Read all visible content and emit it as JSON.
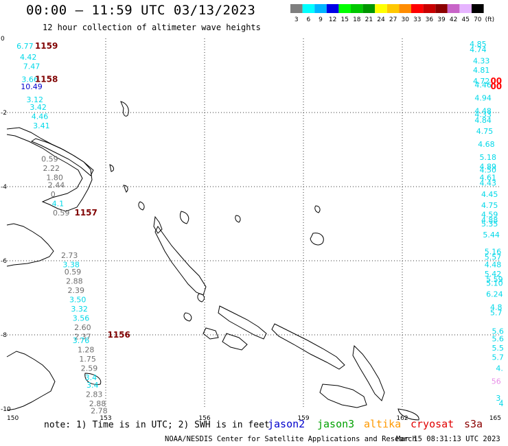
{
  "title": "00:00 – 11:59 UTC 03/13/2023",
  "subtitle": "12 hour collection of altimeter wave heights",
  "legend": {
    "unit": "(ft)",
    "bins": [
      {
        "label": "3",
        "color": "#7f7f7f"
      },
      {
        "label": "6",
        "color": "#00ffff"
      },
      {
        "label": "9",
        "color": "#00b4ff"
      },
      {
        "label": "12",
        "color": "#0000e6"
      },
      {
        "label": "15",
        "color": "#00ff00"
      },
      {
        "label": "18",
        "color": "#00c800"
      },
      {
        "label": "21",
        "color": "#009600"
      },
      {
        "label": "24",
        "color": "#ffff00"
      },
      {
        "label": "27",
        "color": "#ffc800"
      },
      {
        "label": "30",
        "color": "#ff8c00"
      },
      {
        "label": "33",
        "color": "#ff0000"
      },
      {
        "label": "36",
        "color": "#c80000"
      },
      {
        "label": "39",
        "color": "#8b0000"
      },
      {
        "label": "42",
        "color": "#c864c8"
      },
      {
        "label": "45",
        "color": "#e6b4ff"
      },
      {
        "label": "70",
        "color": "#000000"
      }
    ]
  },
  "axes": {
    "lon_labels": [
      "150",
      "153",
      "156",
      "159",
      "162",
      "165"
    ],
    "lat_labels": [
      "0",
      "-2",
      "-4",
      "-6",
      "-8",
      "-10"
    ]
  },
  "colors": {
    "gray": "#6e6e6e",
    "cyan": "#00d8e8",
    "blue": "#0000cc",
    "maroon": "#800000",
    "red": "#ff0000",
    "pink": "#e88ee8"
  },
  "tracks": [
    {
      "times": [
        {
          "text": "1159",
          "lat": -0.2,
          "lon": 151.2
        },
        {
          "text": "1158",
          "lat": -1.1,
          "lon": 151.2
        },
        {
          "text": "1157",
          "lat": -4.7,
          "lon": 152.4
        },
        {
          "text": "1156",
          "lat": -8.0,
          "lon": 153.4
        }
      ],
      "values": [
        {
          "text": "6.77",
          "lat": -0.2,
          "lon": 150.55,
          "c": "cyan"
        },
        {
          "text": "4.42",
          "lat": -0.5,
          "lon": 150.65,
          "c": "cyan"
        },
        {
          "text": "7.47",
          "lat": -0.75,
          "lon": 150.75,
          "c": "cyan"
        },
        {
          "text": "3.66",
          "lat": -1.1,
          "lon": 150.7,
          "c": "cyan"
        },
        {
          "text": "10.49",
          "lat": -1.3,
          "lon": 150.75,
          "c": "blue"
        },
        {
          "text": "3.12",
          "lat": -1.65,
          "lon": 150.85,
          "c": "cyan"
        },
        {
          "text": "3.42",
          "lat": -1.85,
          "lon": 150.95,
          "c": "cyan"
        },
        {
          "text": "4.46",
          "lat": -2.1,
          "lon": 151.0,
          "c": "cyan"
        },
        {
          "text": "3.41",
          "lat": -2.35,
          "lon": 151.05,
          "c": "cyan"
        },
        {
          "text": "0.59",
          "lat": -3.25,
          "lon": 151.3,
          "c": "gray"
        },
        {
          "text": "2.22",
          "lat": -3.5,
          "lon": 151.35,
          "c": "gray"
        },
        {
          "text": "1.80",
          "lat": -3.75,
          "lon": 151.45,
          "c": "gray"
        },
        {
          "text": "2.44",
          "lat": -3.95,
          "lon": 151.5,
          "c": "gray"
        },
        {
          "text": "0",
          "lat": -4.2,
          "lon": 151.4,
          "c": "gray"
        },
        {
          "text": "4.1",
          "lat": -4.45,
          "lon": 151.55,
          "c": "cyan"
        },
        {
          "text": "0.59",
          "lat": -4.7,
          "lon": 151.65,
          "c": "gray"
        },
        {
          "text": "2.73",
          "lat": -5.85,
          "lon": 151.9,
          "c": "gray"
        },
        {
          "text": "3.38",
          "lat": -6.1,
          "lon": 151.95,
          "c": "cyan"
        },
        {
          "text": "0.59",
          "lat": -6.3,
          "lon": 152.0,
          "c": "gray"
        },
        {
          "text": "2.88",
          "lat": -6.55,
          "lon": 152.05,
          "c": "gray"
        },
        {
          "text": "2.39",
          "lat": -6.8,
          "lon": 152.1,
          "c": "gray"
        },
        {
          "text": "3.50",
          "lat": -7.05,
          "lon": 152.15,
          "c": "cyan"
        },
        {
          "text": "3.32",
          "lat": -7.3,
          "lon": 152.2,
          "c": "cyan"
        },
        {
          "text": "3.56",
          "lat": -7.55,
          "lon": 152.25,
          "c": "cyan"
        },
        {
          "text": "2.60",
          "lat": -7.8,
          "lon": 152.3,
          "c": "gray"
        },
        {
          "text": "2.37",
          "lat": -8.05,
          "lon": 152.3,
          "c": "gray"
        },
        {
          "text": "3.76",
          "lat": -8.15,
          "lon": 152.25,
          "c": "cyan"
        },
        {
          "text": "1.28",
          "lat": -8.4,
          "lon": 152.4,
          "c": "gray"
        },
        {
          "text": "1.75",
          "lat": -8.65,
          "lon": 152.45,
          "c": "gray"
        },
        {
          "text": "2.59",
          "lat": -8.9,
          "lon": 152.5,
          "c": "gray"
        },
        {
          "text": "3.4",
          "lat": -9.15,
          "lon": 152.55,
          "c": "cyan"
        },
        {
          "text": "3.4",
          "lat": -9.35,
          "lon": 152.6,
          "c": "cyan"
        },
        {
          "text": "2.83",
          "lat": -9.6,
          "lon": 152.65,
          "c": "gray"
        },
        {
          "text": "2.88",
          "lat": -9.85,
          "lon": 152.75,
          "c": "gray"
        },
        {
          "text": "2.78",
          "lat": -10.05,
          "lon": 152.8,
          "c": "gray"
        }
      ]
    },
    {
      "times": [
        {
          "text": "00",
          "lat": -1.15,
          "lon": 164.85
        },
        {
          "text": "00",
          "lat": -1.3,
          "lon": 164.85
        }
      ],
      "values": [
        {
          "text": "4.85",
          "lat": -0.15,
          "lon": 164.3,
          "c": "cyan"
        },
        {
          "text": "4.74",
          "lat": -0.3,
          "lon": 164.3,
          "c": "cyan"
        },
        {
          "text": "4.33",
          "lat": -0.6,
          "lon": 164.4,
          "c": "cyan"
        },
        {
          "text": "4.81",
          "lat": -0.85,
          "lon": 164.4,
          "c": "cyan"
        },
        {
          "text": "4.72",
          "lat": -1.15,
          "lon": 164.4,
          "c": "cyan"
        },
        {
          "text": "4.46",
          "lat": -1.25,
          "lon": 164.45,
          "c": "cyan"
        },
        {
          "text": "4.94",
          "lat": -1.6,
          "lon": 164.45,
          "c": "cyan"
        },
        {
          "text": "4.48",
          "lat": -1.95,
          "lon": 164.45,
          "c": "cyan"
        },
        {
          "text": "4.33",
          "lat": -2.05,
          "lon": 164.45,
          "c": "cyan"
        },
        {
          "text": "4.84",
          "lat": -2.2,
          "lon": 164.45,
          "c": "cyan"
        },
        {
          "text": "4.75",
          "lat": -2.5,
          "lon": 164.5,
          "c": "cyan"
        },
        {
          "text": "4.68",
          "lat": -2.85,
          "lon": 164.55,
          "c": "cyan"
        },
        {
          "text": "5.18",
          "lat": -3.2,
          "lon": 164.6,
          "c": "cyan"
        },
        {
          "text": "4.89",
          "lat": -3.45,
          "lon": 164.6,
          "c": "cyan"
        },
        {
          "text": "4.50",
          "lat": -3.55,
          "lon": 164.6,
          "c": "cyan"
        },
        {
          "text": "4.61",
          "lat": -3.75,
          "lon": 164.6,
          "c": "cyan"
        },
        {
          "text": "4.43",
          "lat": -3.9,
          "lon": 164.6,
          "c": "cyan"
        },
        {
          "text": "4.45",
          "lat": -4.2,
          "lon": 164.65,
          "c": "cyan"
        },
        {
          "text": "4.75",
          "lat": -4.5,
          "lon": 164.65,
          "c": "cyan"
        },
        {
          "text": "4.59",
          "lat": -4.75,
          "lon": 164.65,
          "c": "cyan"
        },
        {
          "text": "4.88",
          "lat": -4.9,
          "lon": 164.65,
          "c": "cyan"
        },
        {
          "text": "5.35",
          "lat": -5.0,
          "lon": 164.65,
          "c": "cyan"
        },
        {
          "text": "5.44",
          "lat": -5.3,
          "lon": 164.7,
          "c": "cyan"
        },
        {
          "text": "5.16",
          "lat": -5.75,
          "lon": 164.75,
          "c": "cyan"
        },
        {
          "text": "5.57",
          "lat": -5.9,
          "lon": 164.75,
          "c": "cyan"
        },
        {
          "text": "4.48",
          "lat": -6.1,
          "lon": 164.75,
          "c": "cyan"
        },
        {
          "text": "5.42",
          "lat": -6.35,
          "lon": 164.75,
          "c": "cyan"
        },
        {
          "text": "5.59",
          "lat": -6.5,
          "lon": 164.8,
          "c": "cyan"
        },
        {
          "text": "5.10",
          "lat": -6.6,
          "lon": 164.8,
          "c": "cyan"
        },
        {
          "text": "6.24",
          "lat": -6.9,
          "lon": 164.8,
          "c": "cyan"
        },
        {
          "text": "4.8",
          "lat": -7.25,
          "lon": 164.85,
          "c": "cyan"
        },
        {
          "text": "5.7",
          "lat": -7.4,
          "lon": 164.85,
          "c": "cyan"
        },
        {
          "text": "5.6",
          "lat": -7.9,
          "lon": 164.9,
          "c": "cyan"
        },
        {
          "text": "5.6",
          "lat": -8.1,
          "lon": 164.9,
          "c": "cyan"
        },
        {
          "text": "5.5",
          "lat": -8.35,
          "lon": 164.9,
          "c": "cyan"
        },
        {
          "text": "5.7",
          "lat": -8.6,
          "lon": 164.9,
          "c": "cyan"
        },
        {
          "text": "4.",
          "lat": -8.9,
          "lon": 164.95,
          "c": "cyan"
        },
        {
          "text": "56",
          "lat": -9.25,
          "lon": 164.85,
          "c": "pink"
        },
        {
          "text": "3.",
          "lat": -9.7,
          "lon": 164.95,
          "c": "cyan"
        },
        {
          "text": "4",
          "lat": -9.85,
          "lon": 165.0,
          "c": "cyan"
        }
      ]
    }
  ],
  "footer": {
    "note": "note: 1) Time is in UTC; 2) SWH is in feet",
    "satellites": [
      {
        "name": "jason2",
        "color": "#0000cc"
      },
      {
        "name": "jason3",
        "color": "#00a000"
      },
      {
        "name": "altika",
        "color": "#ff9900"
      },
      {
        "name": "cryosat",
        "color": "#e00000"
      },
      {
        "name": "s3a",
        "color": "#8b0000"
      }
    ],
    "credit": "NOAA/NESDIS Center for Satellite Applications and Research",
    "timestamp": "Mar 15 08:31:13 UTC 2023"
  }
}
